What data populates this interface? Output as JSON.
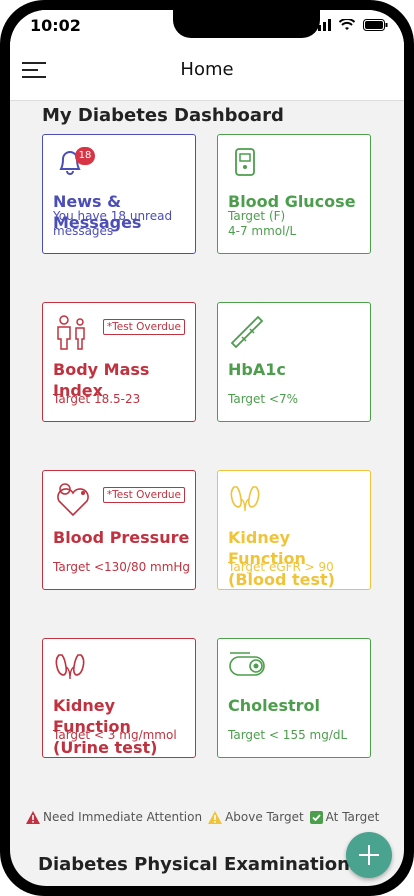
{
  "status": {
    "time": "10:02"
  },
  "appbar": {
    "title": "Home"
  },
  "dashboard": {
    "title": "My Diabetes Dashboard",
    "cards": [
      {
        "title": "News & Messages",
        "sub": "You have 18 unread messages",
        "badge": "18"
      },
      {
        "title": "Blood Glucose",
        "sub": "Target (F)\n4-7 mmol/L"
      },
      {
        "title": "Body Mass Index",
        "sub": "Target 18.5-23",
        "tag": "*Test Overdue"
      },
      {
        "title": "HbA1c",
        "sub": "Target <7%"
      },
      {
        "title": "Blood Pressure",
        "sub": "Target <130/80 mmHg",
        "tag": "*Test Overdue"
      },
      {
        "title": "Kidney Function (Blood test)",
        "sub": "Target eGFR > 90"
      },
      {
        "title": "Kidney Function (Urine test)",
        "sub": "Target < 3 mg/mmol"
      },
      {
        "title": "Cholestrol",
        "sub": "Target < 155 mg/dL"
      }
    ]
  },
  "legend": {
    "immediate": "Need Immediate Attention",
    "above": "Above Target",
    "at": "At Target"
  },
  "physical": {
    "title": "Diabetes Physical Examinations"
  },
  "colors": {
    "blue": "#4c4eb8",
    "green": "#4c9e4c",
    "red": "#c0323f",
    "yellow": "#f0c43a",
    "fab": "#4aa38e"
  }
}
